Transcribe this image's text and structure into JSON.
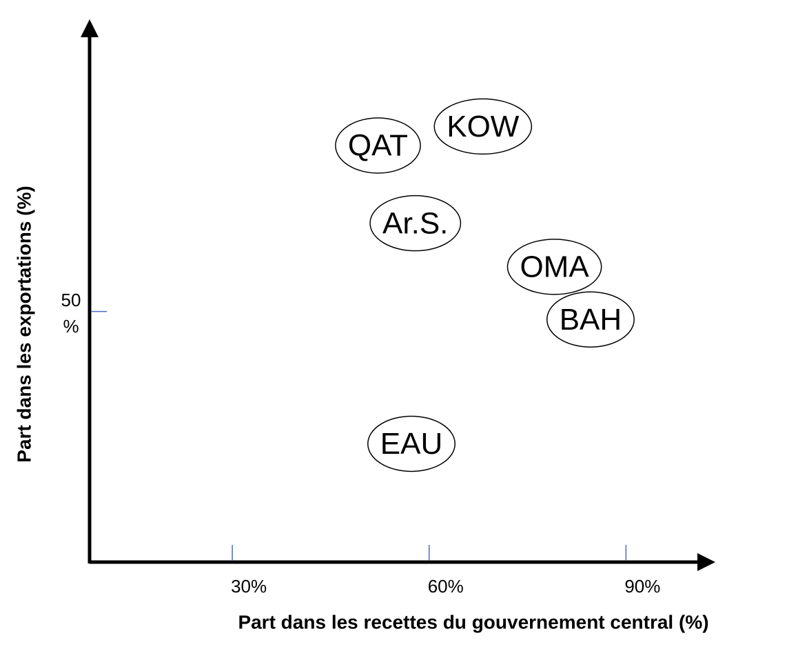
{
  "chart_data": {
    "type": "scatter",
    "xlabel": "Part dans les recettes du gouvernement central (%)",
    "ylabel": "Part dans les exportations (%)",
    "labels": [
      "QAT",
      "KOW",
      "Ar.S.",
      "OMA",
      "BAH",
      "EAU"
    ],
    "x": [
      52.2,
      68.2,
      57.9,
      79.1,
      84.6,
      57.3
    ],
    "values": [
      83.1,
      86.9,
      67.6,
      58.9,
      48.4,
      23.6
    ],
    "xlim": [
      8.25,
      103.3
    ],
    "ylim": [
      0,
      108
    ],
    "xticks": [
      {
        "value": 30,
        "label": "30%"
      },
      {
        "value": 60,
        "label": "60%"
      },
      {
        "value": 90,
        "label": "90%"
      }
    ],
    "yticks": [
      {
        "value": 50,
        "label": "50 %"
      }
    ],
    "color": "#000000",
    "tick_color": "#4a6bbf"
  }
}
